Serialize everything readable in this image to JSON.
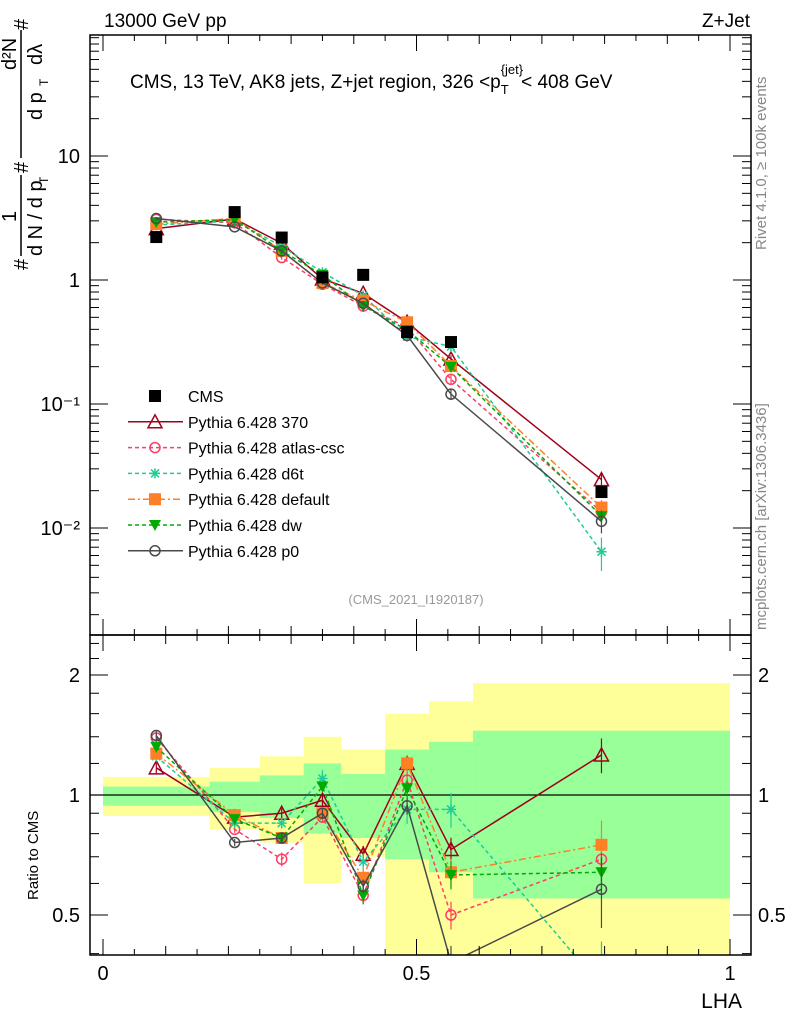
{
  "header": {
    "left": "13000 GeV pp",
    "right": "Z+Jet"
  },
  "side_labels": {
    "rivet": "Rivet 4.1.0, ≥ 100k events",
    "mcplots": "mcplots.cern.ch [arXiv:1306.3436]"
  },
  "ylabel": {
    "hash1": "#",
    "one": "1",
    "dN_over_dp": "d N / d p",
    "sub_T": "T",
    "hash2": "#",
    "d2N": "d²N",
    "dp": "d p",
    "sub_T2": "T",
    "dlambda": "dλ",
    "hash3": "#"
  },
  "chart_data": {
    "type": "line",
    "title": "CMS, 13 TeV, AK8 jets, Z+jet region, 326 <p",
    "title_sub": "T",
    "title_sup": "{jet}",
    "title_end": "< 408 GeV",
    "analysis_id": "(CMS_2021_I1920187)",
    "xlabel": "LHA",
    "ylabel_ratio": "Ratio to CMS",
    "xlim": [
      0,
      1
    ],
    "ylim_main": [
      0.00138,
      94.6
    ],
    "yscale_main": "log",
    "ylim_ratio": [
      0.4,
      2.52
    ],
    "yscale_ratio": "log",
    "x_ticks": [
      {
        "v": 0,
        "label": "0"
      },
      {
        "v": 0.5,
        "label": "0.5"
      },
      {
        "v": 1,
        "label": "1"
      }
    ],
    "y_ticks_main": [
      {
        "v": 10,
        "label": "10"
      },
      {
        "v": 1,
        "label": "1"
      },
      {
        "v": 0.1,
        "label": "10⁻¹"
      },
      {
        "v": 0.01,
        "label": "10⁻²"
      }
    ],
    "y_ticks_ratio": [
      {
        "v": 2,
        "label": "2"
      },
      {
        "v": 1,
        "label": "1"
      },
      {
        "v": 0.5,
        "label": "0.5"
      }
    ],
    "bin_edges": [
      0,
      0.17,
      0.25,
      0.32,
      0.38,
      0.45,
      0.52,
      0.59,
      1.0
    ],
    "x": [
      0.085,
      0.21,
      0.285,
      0.35,
      0.415,
      0.485,
      0.555,
      0.795
    ],
    "cms_values": [
      2.22,
      3.53,
      2.2,
      1.05,
      1.1,
      0.38,
      0.316,
      0.0195
    ],
    "cms_band_1sigma": [
      [
        0.94,
        1.05
      ],
      [
        0.906,
        1.08
      ],
      [
        0.875,
        1.12
      ],
      [
        0.8,
        1.2
      ],
      [
        0.78,
        1.13
      ],
      [
        0.69,
        1.3
      ],
      [
        0.64,
        1.36
      ],
      [
        0.55,
        1.45
      ]
    ],
    "cms_band_2sigma": [
      [
        0.886,
        1.11
      ],
      [
        0.82,
        1.17
      ],
      [
        0.76,
        1.25
      ],
      [
        0.6,
        1.4
      ],
      [
        0.7,
        1.3
      ],
      [
        0.3,
        1.6
      ],
      [
        0.3,
        1.72
      ],
      [
        0.3,
        1.91
      ]
    ],
    "legend_position": "middle-left",
    "legend_cms": "CMS",
    "series": [
      {
        "name": "Pythia 6.428 370",
        "color": "#a0001c",
        "dash": "",
        "marker": "triangle-open",
        "ratio": [
          1.17,
          0.88,
          0.9,
          0.97,
          0.71,
          1.2,
          0.73,
          1.26
        ],
        "rel_err": [
          0.03,
          0.02,
          0.03,
          0.03,
          0.05,
          0.05,
          0.07,
          0.1
        ]
      },
      {
        "name": "Pythia 6.428 atlas-csc",
        "color": "#ff3c64",
        "dash": "4,3",
        "marker": "circle-open",
        "ratio": [
          1.39,
          0.82,
          0.69,
          0.88,
          0.56,
          1.09,
          0.5,
          0.69
        ],
        "rel_err": [
          0.03,
          0.02,
          0.04,
          0.03,
          0.05,
          0.05,
          0.08,
          0.12
        ]
      },
      {
        "name": "Pythia 6.428 d6t",
        "color": "#1ecc96",
        "dash": "4,3",
        "marker": "star",
        "ratio": [
          1.25,
          0.85,
          0.85,
          1.1,
          0.68,
          0.92,
          0.92,
          0.33
        ],
        "rel_err": [
          0.03,
          0.02,
          0.03,
          0.05,
          0.05,
          0.08,
          0.1,
          0.3
        ]
      },
      {
        "name": "Pythia 6.428 default",
        "color": "#ff7f27",
        "dash": "7,3,2,3",
        "marker": "square",
        "ratio": [
          1.27,
          0.89,
          0.78,
          0.9,
          0.62,
          1.2,
          0.64,
          0.75
        ],
        "rel_err": [
          0.03,
          0.02,
          0.03,
          0.03,
          0.05,
          0.05,
          0.08,
          0.15
        ]
      },
      {
        "name": "Pythia 6.428 dw",
        "color": "#00aa00",
        "dash": "4,3",
        "marker": "triangle-down",
        "ratio": [
          1.32,
          0.87,
          0.78,
          1.05,
          0.56,
          1.04,
          0.63,
          0.64
        ],
        "rel_err": [
          0.03,
          0.02,
          0.03,
          0.03,
          0.05,
          0.05,
          0.08,
          0.12
        ]
      },
      {
        "name": "Pythia 6.428 p0",
        "color": "#4a4a4a",
        "dash": "",
        "marker": "circle-open",
        "ratio": [
          1.41,
          0.76,
          0.78,
          0.9,
          0.59,
          0.94,
          0.38,
          0.58
        ],
        "rel_err": [
          0.03,
          0.02,
          0.03,
          0.03,
          0.04,
          0.05,
          0.1,
          0.2
        ]
      }
    ]
  }
}
